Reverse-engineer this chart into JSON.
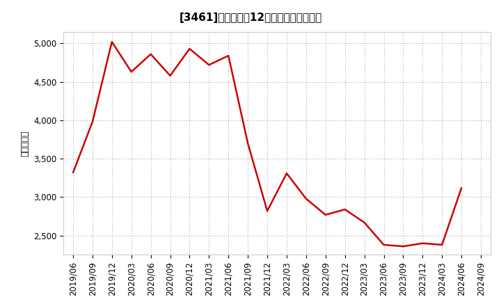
{
  "title": "[3461]　売上高の12か月移動合計の推移",
  "ylabel": "（百万円）",
  "line_color": "#cc0000",
  "bg_color": "#ffffff",
  "plot_bg_color": "#ffffff",
  "grid_color": "#aaaaaa",
  "dates": [
    "2019/06",
    "2019/09",
    "2019/12",
    "2020/03",
    "2020/06",
    "2020/09",
    "2020/12",
    "2021/03",
    "2021/06",
    "2021/09",
    "2021/12",
    "2022/03",
    "2022/06",
    "2022/09",
    "2022/12",
    "2023/03",
    "2023/06",
    "2023/09",
    "2023/12",
    "2024/03",
    "2024/06",
    "2024/09"
  ],
  "values": [
    3320,
    3980,
    5020,
    4630,
    4860,
    4580,
    4930,
    4720,
    4840,
    3700,
    2820,
    3310,
    2980,
    2770,
    2840,
    2670,
    2380,
    2360,
    2400,
    2380,
    3120,
    null
  ],
  "ylim": [
    2250,
    5150
  ],
  "yticks": [
    2500,
    3000,
    3500,
    4000,
    4500,
    5000
  ],
  "title_fontsize": 11,
  "label_fontsize": 9,
  "tick_fontsize": 8.5
}
